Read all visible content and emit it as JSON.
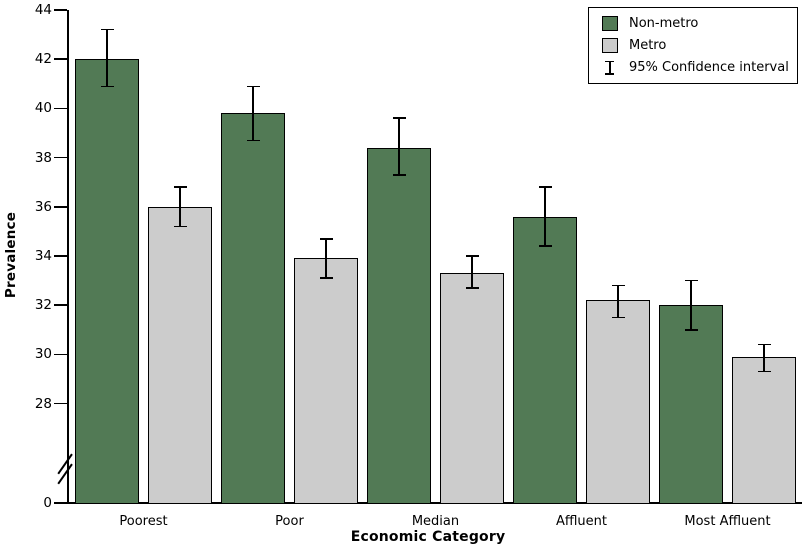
{
  "chart_data": {
    "type": "bar",
    "title": "",
    "xlabel": "Economic Category",
    "ylabel": "Prevalence",
    "categories": [
      "Poorest",
      "Poor",
      "Median",
      "Affluent",
      "Most Affluent"
    ],
    "series": [
      {
        "name": "Non-metro",
        "color": "#527a55",
        "values": [
          42.0,
          39.8,
          38.4,
          35.6,
          32.0
        ],
        "ci_low": [
          40.9,
          38.7,
          37.3,
          34.4,
          31.0
        ],
        "ci_high": [
          43.2,
          40.9,
          39.6,
          36.8,
          33.0
        ]
      },
      {
        "name": "Metro",
        "color": "#cccccc",
        "values": [
          36.0,
          33.9,
          33.3,
          32.2,
          29.9
        ],
        "ci_low": [
          35.2,
          33.1,
          32.7,
          31.5,
          29.3
        ],
        "ci_high": [
          36.8,
          34.7,
          34.0,
          32.8,
          30.4
        ]
      }
    ],
    "error_bars": "95% Confidence interval",
    "y_axis": {
      "ticks": [
        44,
        42,
        40,
        38,
        36,
        34,
        32,
        30,
        28,
        0
      ],
      "broken_axis": true,
      "upper_range": [
        28,
        44
      ],
      "baseline": 0
    },
    "legend": {
      "position": "top-right",
      "items": [
        "Non-metro",
        "Metro",
        "95% Confidence interval"
      ]
    },
    "grid": false,
    "layout": null
  },
  "colors": {
    "nonmetro": "#527a55",
    "metro": "#cccccc",
    "axis": "#000000",
    "background": "#ffffff"
  }
}
